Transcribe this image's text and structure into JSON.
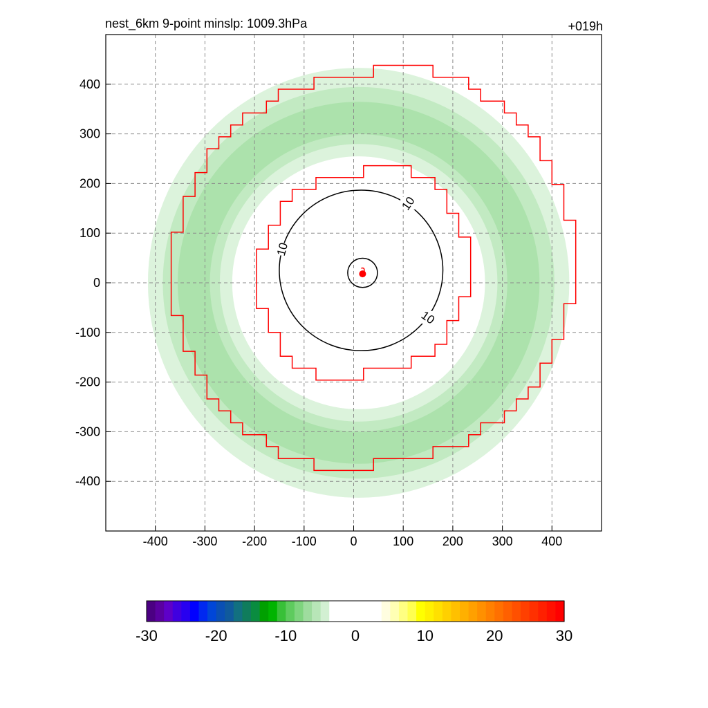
{
  "title_left": "nest_6km  9-point minslp: 1009.3hPa",
  "title_right": "+019h",
  "chart_data": {
    "type": "contour",
    "xlim": [
      -500,
      500
    ],
    "ylim": [
      -500,
      500
    ],
    "x_ticks": [
      "-400",
      "-300",
      "-200",
      "-100",
      "0",
      "100",
      "200",
      "300",
      "400"
    ],
    "y_ticks": [
      "400",
      "300",
      "200",
      "100",
      "0",
      "-100",
      "-200",
      "-300",
      "-400"
    ],
    "grid": true,
    "grid_style": "dashed",
    "shaded_field": {
      "shape": "annulus",
      "center": [
        10,
        0
      ],
      "inner_radius": 255,
      "outer_radius": 425,
      "approx_value_range": [
        -12,
        -4
      ],
      "color": "#a8e0a8"
    },
    "contour_lines": [
      {
        "level": "10",
        "color": "#000000",
        "center": [
          15,
          25
        ],
        "radius": 165
      },
      {
        "level": "",
        "color": "#000000",
        "center": [
          18,
          20
        ],
        "radius": 30
      }
    ],
    "contour_labels": [
      "10",
      "10",
      "10"
    ],
    "red_step_outlines": [
      {
        "name": "inner",
        "center": [
          20,
          20
        ],
        "radius": 215
      },
      {
        "name": "outer",
        "center": [
          40,
          30
        ],
        "radius": 405
      }
    ],
    "storm_center": [
      18,
      18
    ],
    "colorbar": {
      "min": -30,
      "max": 30,
      "ticks": [
        "-30",
        "-20",
        "-10",
        "0",
        "10",
        "20",
        "30"
      ],
      "colors": [
        "#4b0082",
        "#5a00a0",
        "#5e00c8",
        "#4000e0",
        "#2800f0",
        "#0000ff",
        "#0028f0",
        "#0046d8",
        "#0a4fb4",
        "#105a9c",
        "#127080",
        "#107c5c",
        "#0a8c40",
        "#00a000",
        "#00b400",
        "#38c038",
        "#5ecb5e",
        "#7ed47e",
        "#9edc9e",
        "#b8e6b8",
        "#d2f0d2",
        "#ffffff",
        "#ffffff",
        "#ffffff",
        "#ffffff",
        "#ffffff",
        "#ffffff",
        "#fffde0",
        "#ffffb4",
        "#ffff82",
        "#ffff50",
        "#ffff00",
        "#fff000",
        "#ffe000",
        "#ffd000",
        "#ffc000",
        "#ffb000",
        "#ffa000",
        "#ff9000",
        "#ff8000",
        "#ff7000",
        "#ff6000",
        "#ff5000",
        "#ff4000",
        "#ff3000",
        "#ff2000",
        "#ff1000",
        "#ff0000"
      ]
    }
  }
}
